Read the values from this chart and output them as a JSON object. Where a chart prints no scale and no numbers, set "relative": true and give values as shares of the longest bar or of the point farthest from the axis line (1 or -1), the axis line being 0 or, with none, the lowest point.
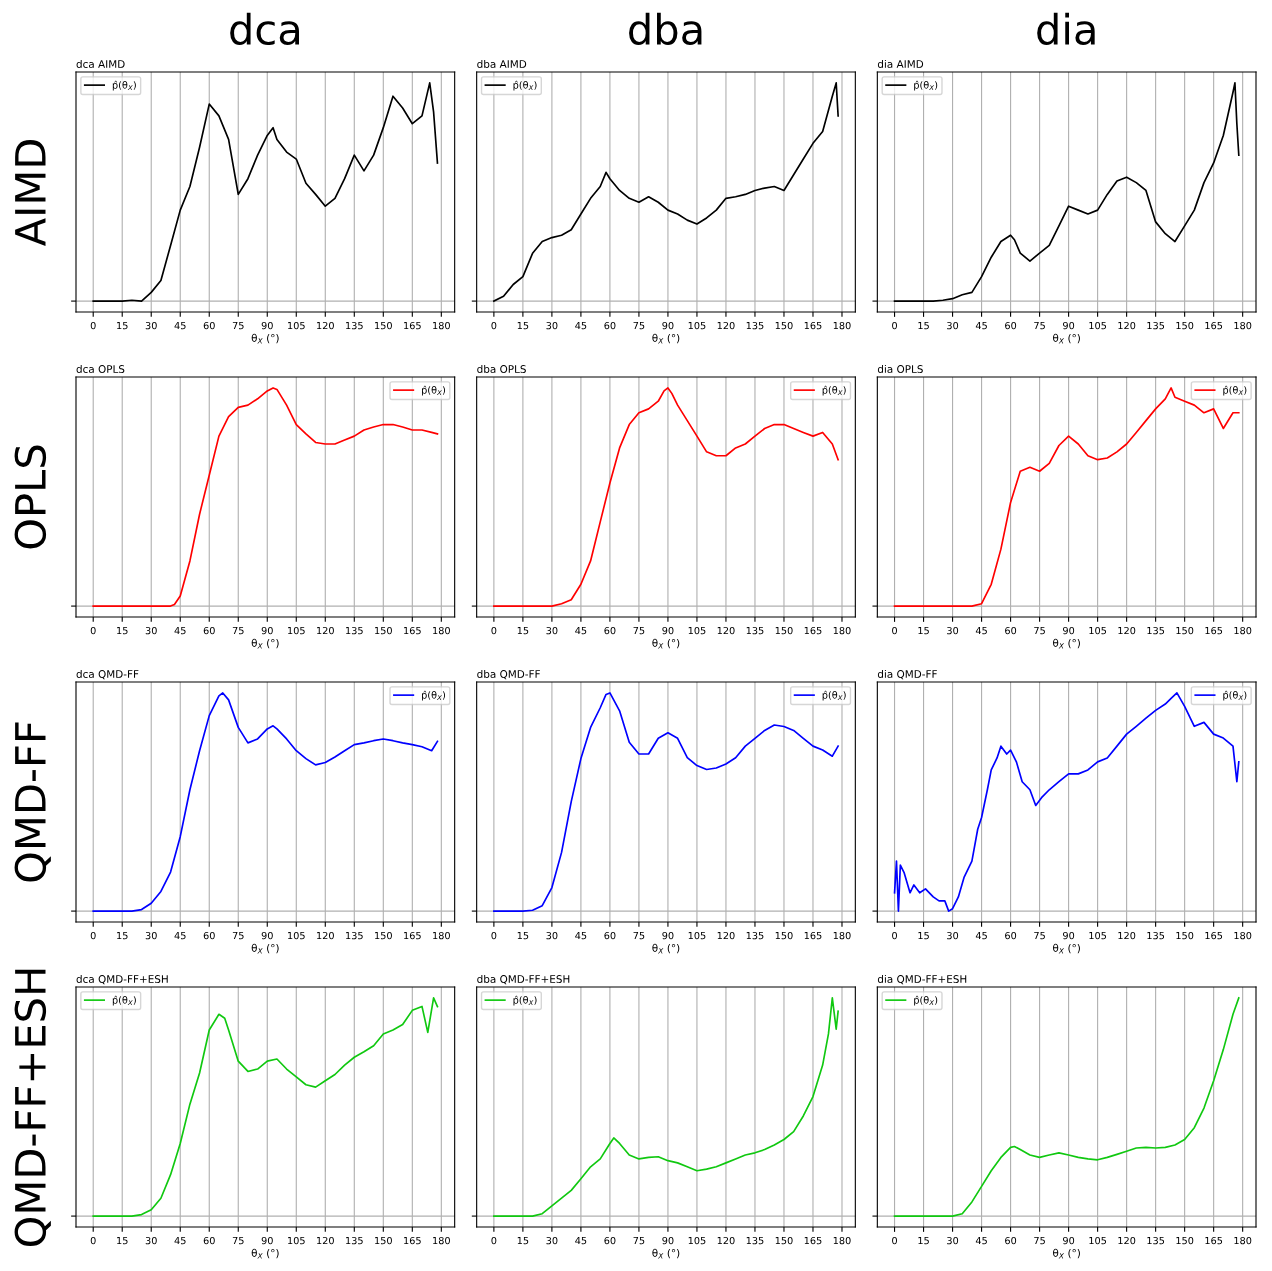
{
  "chart_data": [
    {
      "type": "line",
      "title": "dca AIMD",
      "xlabel": "θ$_{X}$ (°)",
      "relative": true,
      "xlim": [
        -8.9,
        186.9
      ],
      "xticks": [
        0,
        15,
        30,
        45,
        60,
        75,
        90,
        105,
        120,
        135,
        150,
        165,
        180
      ],
      "grid": true,
      "tick_labels": "x",
      "legend": "top left",
      "annotations": [
        "dca",
        "AIMD"
      ],
      "series": [
        {
          "name": "p̂(θ$_{X}$)",
          "color": "#000000",
          "x": [
            0,
            5,
            10,
            15,
            20,
            25,
            30,
            35,
            40,
            45,
            50,
            55,
            60,
            65,
            70,
            75,
            80,
            85,
            90,
            93,
            95,
            100,
            105,
            110,
            115,
            120,
            125,
            130,
            135,
            140,
            145,
            150,
            155,
            160,
            165,
            170,
            174,
            176,
            178
          ],
          "values": [
            0,
            0,
            0,
            0,
            0.004,
            0,
            0.04,
            0.094,
            0.255,
            0.417,
            0.525,
            0.705,
            0.903,
            0.849,
            0.741,
            0.489,
            0.561,
            0.669,
            0.759,
            0.795,
            0.741,
            0.683,
            0.651,
            0.54,
            0.489,
            0.435,
            0.471,
            0.561,
            0.669,
            0.597,
            0.669,
            0.795,
            0.939,
            0.885,
            0.813,
            0.849,
            1,
            0.867,
            0.633
          ]
        }
      ]
    },
    {
      "type": "line",
      "title": "dba AIMD",
      "xlabel": "θ$_{X}$ (°)",
      "relative": true,
      "xlim": [
        -8.9,
        186.9
      ],
      "xticks": [
        0,
        15,
        30,
        45,
        60,
        75,
        90,
        105,
        120,
        135,
        150,
        165,
        180
      ],
      "grid": true,
      "tick_labels": "x",
      "legend": "top left",
      "annotations": [
        "dba"
      ],
      "series": [
        {
          "name": "p̂(θ$_{X}$)",
          "color": "#000000",
          "x": [
            0,
            5,
            10,
            15,
            20,
            25,
            30,
            35,
            40,
            45,
            50,
            55,
            58,
            60,
            65,
            70,
            75,
            80,
            85,
            90,
            95,
            100,
            105,
            110,
            115,
            120,
            125,
            130,
            135,
            140,
            145,
            150,
            155,
            160,
            165,
            170,
            175,
            177,
            178
          ],
          "values": [
            0,
            0.022,
            0.076,
            0.112,
            0.219,
            0.273,
            0.291,
            0.302,
            0.327,
            0.399,
            0.471,
            0.525,
            0.59,
            0.561,
            0.507,
            0.471,
            0.453,
            0.478,
            0.453,
            0.417,
            0.399,
            0.371,
            0.353,
            0.381,
            0.417,
            0.471,
            0.478,
            0.489,
            0.507,
            0.518,
            0.525,
            0.507,
            0.579,
            0.651,
            0.723,
            0.777,
            0.939,
            1,
            0.849
          ]
        }
      ]
    },
    {
      "type": "line",
      "title": "dia AIMD",
      "xlabel": "θ$_{X}$ (°)",
      "relative": true,
      "xlim": [
        -8.9,
        186.9
      ],
      "xticks": [
        0,
        15,
        30,
        45,
        60,
        75,
        90,
        105,
        120,
        135,
        150,
        165,
        180
      ],
      "grid": true,
      "tick_labels": "x",
      "legend": "top left",
      "annotations": [
        "dia"
      ],
      "series": [
        {
          "name": "p̂(θ$_{X}$)",
          "color": "#000000",
          "x": [
            0,
            10,
            20,
            25,
            30,
            35,
            40,
            45,
            50,
            55,
            60,
            62,
            65,
            70,
            75,
            80,
            85,
            90,
            95,
            100,
            105,
            110,
            115,
            120,
            125,
            130,
            135,
            140,
            145,
            150,
            155,
            160,
            165,
            170,
            175,
            176,
            177,
            178
          ],
          "values": [
            0,
            0,
            0,
            0.004,
            0.011,
            0.029,
            0.04,
            0.112,
            0.201,
            0.273,
            0.302,
            0.281,
            0.22,
            0.183,
            0.22,
            0.255,
            0.345,
            0.435,
            0.417,
            0.399,
            0.417,
            0.489,
            0.55,
            0.568,
            0.543,
            0.507,
            0.363,
            0.309,
            0.273,
            0.345,
            0.417,
            0.543,
            0.633,
            0.759,
            0.957,
            1,
            0.813,
            0.669
          ]
        }
      ]
    },
    {
      "type": "line",
      "title": "dca OPLS",
      "xlabel": "θ$_{X}$ (°)",
      "relative": true,
      "xlim": [
        -8.9,
        186.9
      ],
      "xticks": [
        0,
        15,
        30,
        45,
        60,
        75,
        90,
        105,
        120,
        135,
        150,
        165,
        180
      ],
      "grid": true,
      "tick_labels": "x",
      "legend": "top right",
      "annotations": [
        "OPLS"
      ],
      "series": [
        {
          "name": "p̂(θ$_{X}$)",
          "color": "#ff0000",
          "x": [
            0,
            10,
            20,
            30,
            40,
            42,
            45,
            50,
            55,
            60,
            65,
            70,
            75,
            80,
            85,
            90,
            93,
            95,
            100,
            105,
            110,
            115,
            120,
            125,
            130,
            135,
            140,
            145,
            150,
            155,
            160,
            165,
            170,
            175,
            178
          ],
          "values": [
            0,
            0,
            0,
            0,
            0,
            0.007,
            0.046,
            0.207,
            0.421,
            0.6,
            0.779,
            0.868,
            0.911,
            0.921,
            0.95,
            0.986,
            1,
            0.993,
            0.921,
            0.832,
            0.789,
            0.75,
            0.743,
            0.743,
            0.761,
            0.779,
            0.807,
            0.821,
            0.832,
            0.832,
            0.821,
            0.807,
            0.807,
            0.796,
            0.789
          ]
        }
      ]
    },
    {
      "type": "line",
      "title": "dba OPLS",
      "xlabel": "θ$_{X}$ (°)",
      "relative": true,
      "xlim": [
        -8.9,
        186.9
      ],
      "xticks": [
        0,
        15,
        30,
        45,
        60,
        75,
        90,
        105,
        120,
        135,
        150,
        165,
        180
      ],
      "grid": true,
      "tick_labels": "x",
      "legend": "top right",
      "series": [
        {
          "name": "p̂(θ$_{X}$)",
          "color": "#ff0000",
          "x": [
            0,
            10,
            20,
            30,
            35,
            40,
            45,
            50,
            55,
            60,
            65,
            70,
            75,
            80,
            85,
            88,
            90,
            92,
            95,
            100,
            105,
            110,
            115,
            120,
            125,
            130,
            135,
            140,
            145,
            150,
            155,
            160,
            165,
            170,
            175,
            178
          ],
          "values": [
            0,
            0,
            0,
            0,
            0.011,
            0.029,
            0.1,
            0.207,
            0.386,
            0.564,
            0.725,
            0.832,
            0.886,
            0.904,
            0.939,
            0.986,
            1,
            0.975,
            0.921,
            0.85,
            0.779,
            0.707,
            0.689,
            0.689,
            0.725,
            0.743,
            0.779,
            0.814,
            0.832,
            0.832,
            0.814,
            0.796,
            0.779,
            0.796,
            0.743,
            0.671
          ]
        }
      ]
    },
    {
      "type": "line",
      "title": "dia OPLS",
      "xlabel": "θ$_{X}$ (°)",
      "relative": true,
      "xlim": [
        -8.9,
        186.9
      ],
      "xticks": [
        0,
        15,
        30,
        45,
        60,
        75,
        90,
        105,
        120,
        135,
        150,
        165,
        180
      ],
      "grid": true,
      "tick_labels": "x",
      "legend": "top right",
      "series": [
        {
          "name": "p̂(θ$_{X}$)",
          "color": "#ff0000",
          "x": [
            0,
            10,
            20,
            30,
            40,
            45,
            50,
            55,
            60,
            65,
            70,
            75,
            80,
            85,
            90,
            95,
            100,
            105,
            110,
            115,
            120,
            125,
            130,
            135,
            140,
            143,
            145,
            150,
            155,
            160,
            165,
            170,
            175,
            178
          ],
          "values": [
            0,
            0,
            0,
            0,
            0,
            0.011,
            0.1,
            0.261,
            0.475,
            0.618,
            0.636,
            0.618,
            0.654,
            0.736,
            0.779,
            0.743,
            0.689,
            0.671,
            0.679,
            0.707,
            0.743,
            0.796,
            0.85,
            0.904,
            0.95,
            1,
            0.957,
            0.939,
            0.921,
            0.886,
            0.904,
            0.814,
            0.886,
            0.886
          ]
        }
      ]
    },
    {
      "type": "line",
      "title": "dca QMD-FF",
      "xlabel": "θ$_{X}$ (°)",
      "relative": true,
      "xlim": [
        -8.9,
        186.9
      ],
      "xticks": [
        0,
        15,
        30,
        45,
        60,
        75,
        90,
        105,
        120,
        135,
        150,
        165,
        180
      ],
      "grid": true,
      "tick_labels": "x",
      "legend": "top right",
      "annotations": [
        "QMD-FF"
      ],
      "series": [
        {
          "name": "p̂(θ$_{X}$)",
          "color": "#0000ff",
          "x": [
            0,
            10,
            20,
            25,
            30,
            35,
            40,
            45,
            50,
            55,
            60,
            65,
            67,
            70,
            75,
            80,
            85,
            90,
            93,
            95,
            100,
            105,
            110,
            115,
            120,
            125,
            130,
            135,
            140,
            145,
            150,
            155,
            160,
            165,
            170,
            175,
            178
          ],
          "values": [
            0,
            0,
            0,
            0.007,
            0.036,
            0.09,
            0.179,
            0.341,
            0.556,
            0.735,
            0.896,
            0.986,
            1,
            0.968,
            0.842,
            0.771,
            0.789,
            0.835,
            0.849,
            0.835,
            0.789,
            0.735,
            0.699,
            0.67,
            0.681,
            0.706,
            0.735,
            0.763,
            0.771,
            0.781,
            0.789,
            0.781,
            0.771,
            0.763,
            0.753,
            0.735,
            0.778
          ]
        }
      ]
    },
    {
      "type": "line",
      "title": "dba QMD-FF",
      "xlabel": "θ$_{X}$ (°)",
      "relative": true,
      "xlim": [
        -8.9,
        186.9
      ],
      "xticks": [
        0,
        15,
        30,
        45,
        60,
        75,
        90,
        105,
        120,
        135,
        150,
        165,
        180
      ],
      "grid": true,
      "tick_labels": "x",
      "legend": "top right",
      "series": [
        {
          "name": "p̂(θ$_{X}$)",
          "color": "#0000ff",
          "x": [
            0,
            10,
            15,
            20,
            25,
            30,
            35,
            40,
            45,
            50,
            55,
            58,
            60,
            65,
            70,
            75,
            80,
            85,
            90,
            95,
            100,
            105,
            110,
            115,
            120,
            125,
            130,
            135,
            140,
            145,
            150,
            155,
            160,
            165,
            170,
            175,
            178
          ],
          "values": [
            0,
            0,
            0,
            0.004,
            0.025,
            0.108,
            0.269,
            0.502,
            0.699,
            0.842,
            0.932,
            0.993,
            1,
            0.918,
            0.774,
            0.72,
            0.72,
            0.792,
            0.817,
            0.792,
            0.703,
            0.667,
            0.649,
            0.656,
            0.674,
            0.703,
            0.756,
            0.792,
            0.828,
            0.853,
            0.846,
            0.828,
            0.792,
            0.756,
            0.738,
            0.71,
            0.756
          ]
        }
      ]
    },
    {
      "type": "line",
      "title": "dia QMD-FF",
      "xlabel": "θ$_{X}$ (°)",
      "relative": true,
      "xlim": [
        -8.9,
        186.9
      ],
      "xticks": [
        0,
        15,
        30,
        45,
        60,
        75,
        90,
        105,
        120,
        135,
        150,
        165,
        180
      ],
      "grid": true,
      "tick_labels": "x",
      "legend": "top right",
      "series": [
        {
          "name": "p̂(θ$_{X}$)",
          "color": "#0000ff",
          "x": [
            0,
            1,
            2,
            3,
            5,
            8,
            10,
            13,
            16,
            20,
            23,
            26,
            28,
            30,
            33,
            36,
            40,
            43,
            45,
            48,
            50,
            53,
            55,
            58,
            60,
            63,
            66,
            70,
            73,
            76,
            80,
            85,
            90,
            95,
            100,
            105,
            110,
            115,
            120,
            125,
            130,
            135,
            140,
            143,
            146,
            150,
            155,
            160,
            165,
            170,
            175,
            177,
            178
          ],
          "values": [
            0.084,
            0.229,
            0,
            0.211,
            0.175,
            0.084,
            0.12,
            0.084,
            0.102,
            0.065,
            0.047,
            0.047,
            0,
            0.011,
            0.065,
            0.156,
            0.229,
            0.375,
            0.429,
            0.556,
            0.647,
            0.702,
            0.756,
            0.72,
            0.738,
            0.684,
            0.593,
            0.556,
            0.484,
            0.52,
            0.556,
            0.593,
            0.629,
            0.629,
            0.647,
            0.684,
            0.702,
            0.756,
            0.811,
            0.847,
            0.884,
            0.92,
            0.949,
            0.975,
            1,
            0.938,
            0.847,
            0.865,
            0.811,
            0.793,
            0.756,
            0.593,
            0.684
          ]
        }
      ]
    },
    {
      "type": "line",
      "title": "dca QMD-FF+ESH",
      "xlabel": "θ$_{X}$ (°)",
      "relative": true,
      "xlim": [
        -8.9,
        186.9
      ],
      "xticks": [
        0,
        15,
        30,
        45,
        60,
        75,
        90,
        105,
        120,
        135,
        150,
        165,
        180
      ],
      "grid": true,
      "tick_labels": "x",
      "legend": "top left",
      "annotations": [
        "QMD-FF+ESH"
      ],
      "series": [
        {
          "name": "p̂(θ$_{X}$)",
          "color": "#10c810",
          "x": [
            0,
            10,
            20,
            25,
            30,
            35,
            40,
            45,
            50,
            55,
            60,
            65,
            68,
            70,
            75,
            80,
            85,
            90,
            95,
            100,
            105,
            110,
            115,
            120,
            125,
            130,
            135,
            140,
            145,
            150,
            155,
            160,
            165,
            170,
            173,
            176,
            178
          ],
          "values": [
            0,
            0,
            0,
            0.007,
            0.029,
            0.082,
            0.19,
            0.333,
            0.513,
            0.656,
            0.853,
            0.925,
            0.907,
            0.853,
            0.71,
            0.663,
            0.674,
            0.71,
            0.72,
            0.674,
            0.638,
            0.602,
            0.591,
            0.62,
            0.649,
            0.692,
            0.728,
            0.753,
            0.781,
            0.835,
            0.853,
            0.878,
            0.943,
            0.961,
            0.842,
            1,
            0.96
          ]
        }
      ]
    },
    {
      "type": "line",
      "title": "dba QMD-FF+ESH",
      "xlabel": "θ$_{X}$ (°)",
      "relative": true,
      "xlim": [
        -8.9,
        186.9
      ],
      "xticks": [
        0,
        15,
        30,
        45,
        60,
        75,
        90,
        105,
        120,
        135,
        150,
        165,
        180
      ],
      "grid": true,
      "tick_labels": "x",
      "legend": "top left",
      "series": [
        {
          "name": "p̂(θ$_{X}$)",
          "color": "#10c810",
          "x": [
            0,
            10,
            20,
            25,
            30,
            35,
            40,
            45,
            50,
            55,
            60,
            62,
            65,
            70,
            75,
            80,
            85,
            90,
            95,
            100,
            105,
            110,
            115,
            120,
            125,
            130,
            135,
            140,
            145,
            150,
            155,
            160,
            165,
            170,
            173,
            175,
            177,
            178
          ],
          "values": [
            0,
            0,
            0,
            0.011,
            0.047,
            0.082,
            0.118,
            0.171,
            0.226,
            0.262,
            0.333,
            0.358,
            0.333,
            0.28,
            0.262,
            0.269,
            0.272,
            0.254,
            0.244,
            0.226,
            0.208,
            0.215,
            0.226,
            0.244,
            0.262,
            0.28,
            0.29,
            0.305,
            0.326,
            0.351,
            0.387,
            0.459,
            0.548,
            0.692,
            0.835,
            1,
            0.857,
            0.939
          ]
        }
      ]
    },
    {
      "type": "line",
      "title": "dia QMD-FF+ESH",
      "xlabel": "θ$_{X}$ (°)",
      "relative": true,
      "xlim": [
        -8.9,
        186.9
      ],
      "xticks": [
        0,
        15,
        30,
        45,
        60,
        75,
        90,
        105,
        120,
        135,
        150,
        165,
        180
      ],
      "grid": true,
      "tick_labels": "x",
      "legend": "top left",
      "series": [
        {
          "name": "p̂(θ$_{X}$)",
          "color": "#10c810",
          "x": [
            0,
            10,
            20,
            30,
            35,
            40,
            45,
            50,
            55,
            60,
            62,
            65,
            70,
            75,
            80,
            85,
            90,
            95,
            100,
            105,
            110,
            115,
            120,
            125,
            130,
            135,
            140,
            145,
            150,
            155,
            160,
            165,
            170,
            175,
            178
          ],
          "values": [
            0,
            0,
            0,
            0,
            0.011,
            0.065,
            0.136,
            0.208,
            0.269,
            0.315,
            0.319,
            0.305,
            0.28,
            0.269,
            0.28,
            0.29,
            0.28,
            0.269,
            0.262,
            0.258,
            0.269,
            0.283,
            0.297,
            0.312,
            0.315,
            0.312,
            0.315,
            0.326,
            0.351,
            0.405,
            0.495,
            0.62,
            0.763,
            0.925,
            1
          ]
        }
      ]
    }
  ]
}
